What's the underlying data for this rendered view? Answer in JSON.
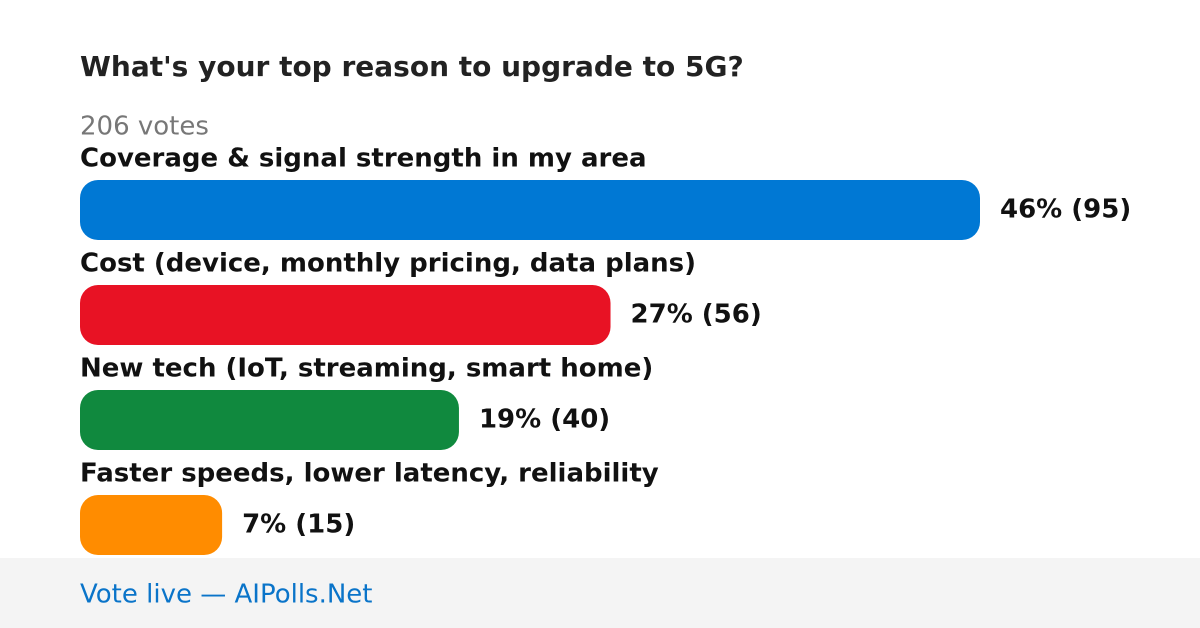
{
  "chart_data": {
    "type": "bar",
    "orientation": "horizontal",
    "title": "What's your top reason to upgrade to 5G?",
    "subtitle": "206 votes",
    "categories": [
      "Coverage & signal strength in my area",
      "Cost (device, monthly pricing, data plans)",
      "New tech (IoT, streaming, smart home)",
      "Faster speeds, lower latency, reliability"
    ],
    "values": [
      95,
      56,
      40,
      15
    ],
    "value_labels": [
      "46% (95)",
      "27% (56)",
      "19% (40)",
      "7% (15)"
    ],
    "colors": [
      "#0078d4",
      "#e81224",
      "#10893e",
      "#ff8c00"
    ],
    "footer": "Vote live — AIPolls.Net"
  }
}
